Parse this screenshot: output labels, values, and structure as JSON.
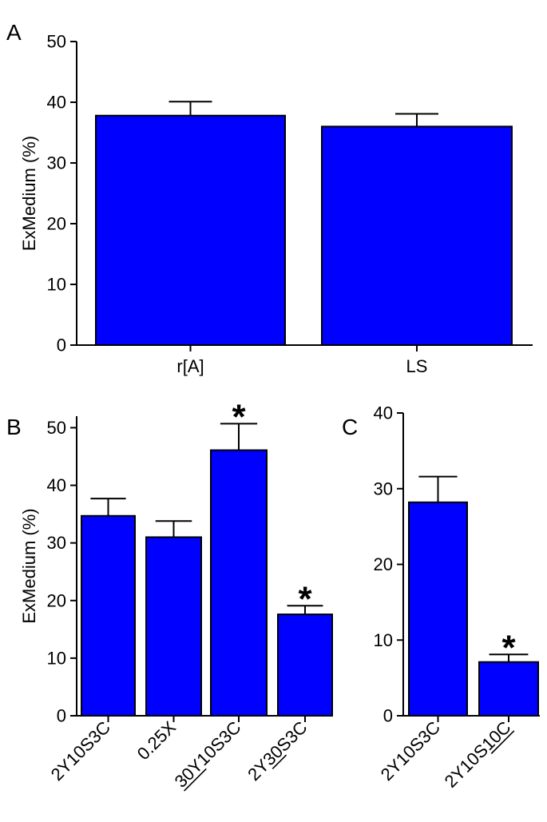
{
  "chart_data": [
    {
      "panel": "A",
      "type": "bar",
      "ylabel": "ExMedium (%)",
      "ylim": [
        0,
        50
      ],
      "yticks": [
        0,
        10,
        20,
        30,
        40,
        50
      ],
      "categories": [
        "r[A]",
        "LS"
      ],
      "values": [
        37.8,
        36.0
      ],
      "errors": [
        2.3,
        2.1
      ],
      "significant": [
        false,
        false
      ],
      "bar_color": "#0000ff"
    },
    {
      "panel": "B",
      "type": "bar",
      "ylabel": "ExMedium (%)",
      "ylim": [
        0,
        52
      ],
      "yticks": [
        0,
        10,
        20,
        30,
        40,
        50
      ],
      "categories": [
        "2Y10S3C",
        "0.25X",
        "30Y10S3C",
        "2Y30S3C"
      ],
      "underline_parts": [
        "",
        "",
        "30Y",
        "30"
      ],
      "values": [
        34.7,
        31.0,
        46.1,
        17.6
      ],
      "errors": [
        3.0,
        2.8,
        4.6,
        1.5
      ],
      "significant": [
        false,
        false,
        true,
        true
      ],
      "sig_marker": "*",
      "bar_color": "#0000ff"
    },
    {
      "panel": "C",
      "type": "bar",
      "ylabel": "",
      "ylim": [
        0,
        40
      ],
      "yticks": [
        0,
        10,
        20,
        30,
        40
      ],
      "categories": [
        "2Y10S3C",
        "2Y10S10C"
      ],
      "underline_parts": [
        "",
        "10C"
      ],
      "values": [
        28.2,
        7.1
      ],
      "errors": [
        3.4,
        1.0
      ],
      "significant": [
        false,
        true
      ],
      "sig_marker": "*",
      "bar_color": "#0000ff"
    }
  ]
}
